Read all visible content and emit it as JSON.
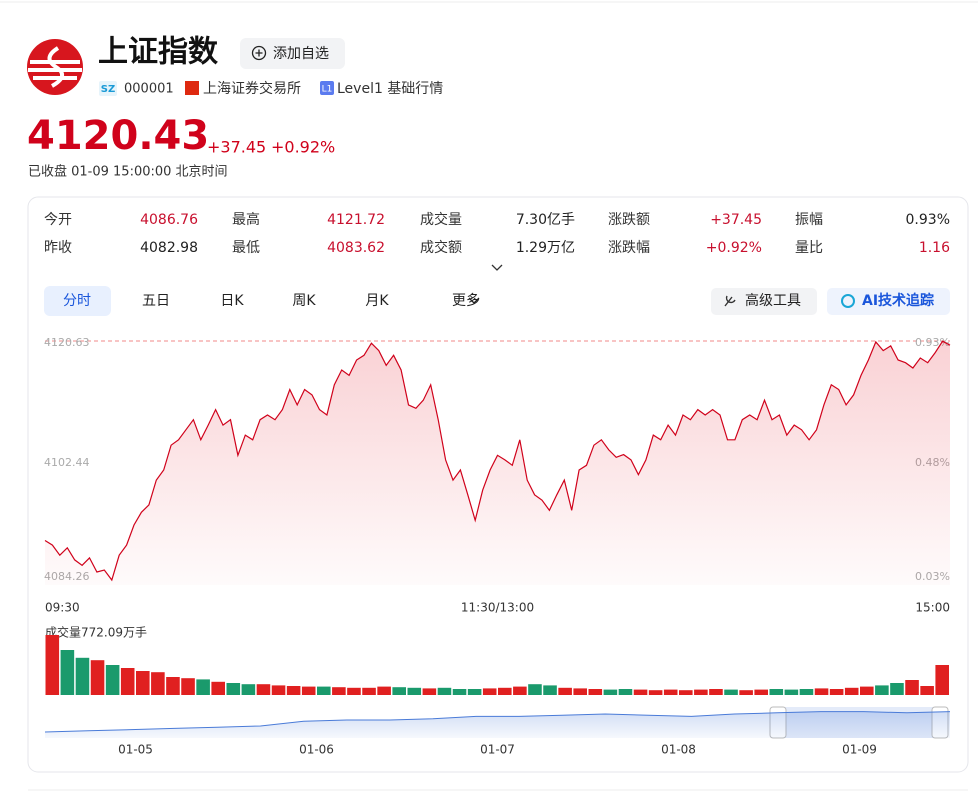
{
  "header": {
    "title": "上证指数",
    "watch_button": "添加自选",
    "market_badge": "SZ",
    "code": "000001",
    "exchange": "上海证券交易所",
    "level_badge": "L1",
    "level": "Level1 基础行情"
  },
  "quote": {
    "price": "4120.43",
    "change": "+37.45",
    "change_pct": "+0.92%",
    "status": "已收盘 01-09 15:00:00 北京时间"
  },
  "stats": {
    "rows": [
      [
        {
          "label": "今开",
          "value": "4086.76",
          "color": "#c8102e"
        },
        {
          "label": "最高",
          "value": "4121.72",
          "color": "#c8102e"
        },
        {
          "label": "成交量",
          "value": "7.30亿手",
          "color": "#222222"
        },
        {
          "label": "涨跌额",
          "value": "+37.45",
          "color": "#c8102e"
        },
        {
          "label": "振幅",
          "value": "0.93%",
          "color": "#222222"
        }
      ],
      [
        {
          "label": "昨收",
          "value": "4082.98",
          "color": "#222222"
        },
        {
          "label": "最低",
          "value": "4083.62",
          "color": "#c8102e"
        },
        {
          "label": "成交额",
          "value": "1.29万亿",
          "color": "#222222"
        },
        {
          "label": "涨跌幅",
          "value": "+0.92%",
          "color": "#c8102e"
        },
        {
          "label": "量比",
          "value": "1.16",
          "color": "#c8102e"
        }
      ]
    ]
  },
  "tabs": [
    "分时",
    "五日",
    "日K",
    "周K",
    "月K",
    "更多"
  ],
  "tools": [
    "高级工具",
    "AI技术追踪"
  ],
  "intraday": {
    "type": "line",
    "color": "#d0021b",
    "ylim": [
      4084.26,
      4120.63
    ],
    "yticks": [
      4084.26,
      4102.44,
      4120.63
    ],
    "y2lim": [
      0.03,
      0.93
    ],
    "y2ticks": [
      {
        "value": 0.03,
        "label": "0.03%"
      },
      {
        "value": 0.48,
        "label": "0.48%"
      },
      {
        "value": 0.93,
        "label": "0.93%"
      }
    ],
    "xlabels": [
      "09:30",
      "11:30/13:00",
      "15:00"
    ],
    "values": [
      4090.9,
      4090.2,
      4088.7,
      4089.8,
      4088.0,
      4087.2,
      4088.3,
      4086.2,
      4086.5,
      4085.0,
      4088.7,
      4090.2,
      4093.2,
      4095.1,
      4096.2,
      4099.9,
      4101.4,
      4105.1,
      4105.9,
      4107.4,
      4108.9,
      4105.9,
      4108.1,
      4110.4,
      4108.1,
      4108.9,
      4103.6,
      4106.6,
      4105.9,
      4108.9,
      4109.6,
      4108.9,
      4110.4,
      4113.4,
      4111.1,
      4113.4,
      4112.6,
      4110.4,
      4109.6,
      4114.1,
      4116.3,
      4115.5,
      4117.8,
      4118.5,
      4120.3,
      4119.2,
      4117.0,
      4118.5,
      4116.3,
      4111.1,
      4110.6,
      4111.8,
      4114.1,
      4108.9,
      4102.9,
      4099.9,
      4101.4,
      4097.7,
      4093.9,
      4098.4,
      4101.4,
      4103.6,
      4102.9,
      4102.1,
      4105.9,
      4099.9,
      4097.7,
      4096.9,
      4095.4,
      4097.7,
      4099.9,
      4095.4,
      4101.4,
      4102.1,
      4105.1,
      4105.9,
      4104.4,
      4103.3,
      4103.7,
      4102.9,
      4100.7,
      4102.9,
      4106.6,
      4105.9,
      4108.1,
      4106.6,
      4109.6,
      4108.9,
      4110.4,
      4109.6,
      4110.4,
      4109.6,
      4105.9,
      4105.9,
      4108.9,
      4109.6,
      4108.9,
      4111.8,
      4108.9,
      4109.6,
      4106.6,
      4108.1,
      4107.4,
      4105.9,
      4107.4,
      4111.1,
      4114.1,
      4113.4,
      4111.1,
      4112.6,
      4115.5,
      4117.8,
      4120.5,
      4119.2,
      4119.9,
      4117.8,
      4117.4,
      4116.6,
      4118.1,
      4117.4,
      4118.9,
      4120.6,
      4120.0
    ]
  },
  "volume": {
    "type": "bar",
    "title": "成交量772.09万手",
    "ylim": [
      0,
      100
    ],
    "up_color": "#e02020",
    "down_color": "#1a9a6c",
    "values": [
      100,
      75,
      62,
      58,
      50,
      45,
      40,
      38,
      30,
      28,
      26,
      22,
      20,
      18,
      18,
      16,
      15,
      14,
      14,
      13,
      12,
      12,
      14,
      13,
      12,
      11,
      12,
      10,
      10,
      11,
      12,
      14,
      18,
      16,
      12,
      11,
      10,
      9,
      10,
      9,
      8,
      9,
      8,
      9,
      10,
      9,
      8,
      9,
      10,
      9,
      10,
      11,
      10,
      12,
      14,
      16,
      20,
      25,
      15,
      50
    ]
  },
  "navigator": {
    "type": "line",
    "color": "#4a7bd8",
    "ylim": [
      0,
      25
    ],
    "categories": [
      "01-05",
      "01-06",
      "01-07",
      "01-08",
      "01-09"
    ],
    "values": [
      5,
      6,
      7,
      8,
      9,
      10,
      14,
      15,
      15,
      16,
      18,
      18,
      19,
      20,
      19,
      18,
      20,
      21,
      22,
      22,
      21,
      22
    ]
  }
}
